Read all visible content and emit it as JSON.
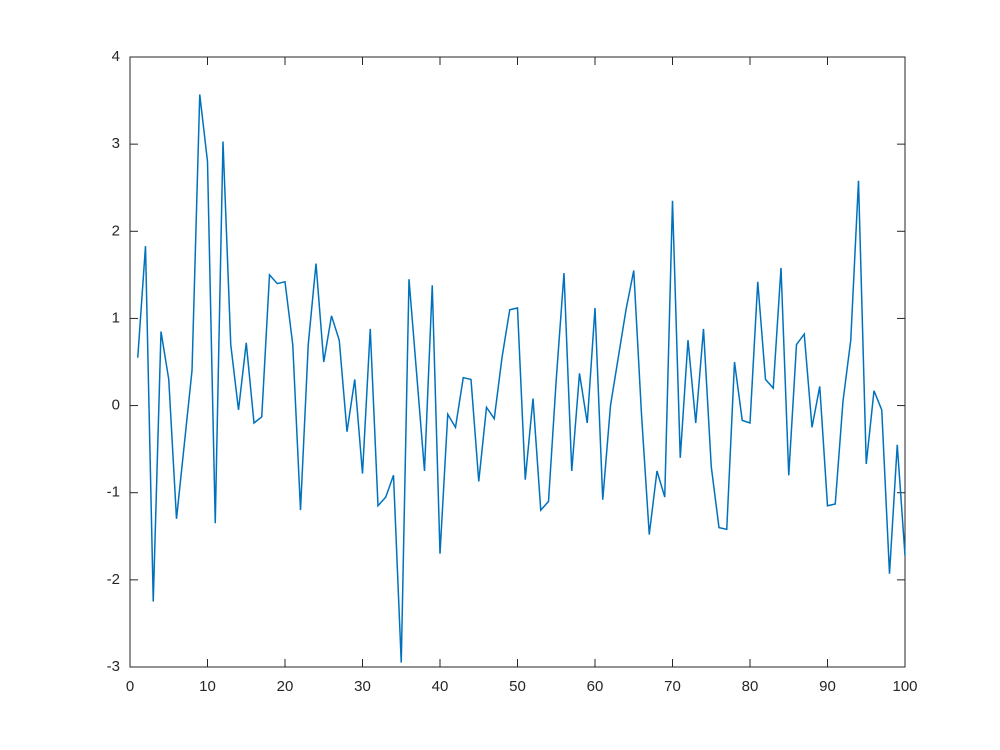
{
  "chart_data": {
    "type": "line",
    "x": [
      1,
      2,
      3,
      4,
      5,
      6,
      7,
      8,
      9,
      10,
      11,
      12,
      13,
      14,
      15,
      16,
      17,
      18,
      19,
      20,
      21,
      22,
      23,
      24,
      25,
      26,
      27,
      28,
      29,
      30,
      31,
      32,
      33,
      34,
      35,
      36,
      37,
      38,
      39,
      40,
      41,
      42,
      43,
      44,
      45,
      46,
      47,
      48,
      49,
      50,
      51,
      52,
      53,
      54,
      55,
      56,
      57,
      58,
      59,
      60,
      61,
      62,
      63,
      64,
      65,
      66,
      67,
      68,
      69,
      70,
      71,
      72,
      73,
      74,
      75,
      76,
      77,
      78,
      79,
      80,
      81,
      82,
      83,
      84,
      85,
      86,
      87,
      88,
      89,
      90,
      91,
      92,
      93,
      94,
      95,
      96,
      97,
      98,
      99,
      100
    ],
    "series": [
      {
        "color": "#0072bd",
        "values": [
          0.55,
          1.83,
          -2.25,
          0.85,
          0.3,
          -1.3,
          -0.45,
          0.4,
          3.57,
          2.8,
          -1.35,
          3.03,
          0.7,
          -0.05,
          0.72,
          -0.2,
          -0.13,
          1.5,
          1.4,
          1.42,
          0.7,
          -1.2,
          0.7,
          1.63,
          0.5,
          1.03,
          0.75,
          -0.3,
          0.3,
          -0.78,
          0.88,
          -1.15,
          -1.05,
          -0.8,
          -2.95,
          1.45,
          0.35,
          -0.75,
          1.38,
          -1.7,
          -0.1,
          -0.25,
          0.32,
          0.3,
          -0.87,
          -0.02,
          -0.15,
          0.55,
          1.1,
          1.12,
          -0.85,
          0.08,
          -1.2,
          -1.1,
          0.3,
          1.52,
          -0.75,
          0.37,
          -0.2,
          1.12,
          -1.08,
          0.0,
          0.55,
          1.1,
          1.55,
          -0.1,
          -1.48,
          -0.75,
          -1.05,
          2.35,
          -0.6,
          0.75,
          -0.2,
          0.88,
          -0.7,
          -1.4,
          -1.42,
          0.5,
          -0.17,
          -0.2,
          1.42,
          0.3,
          0.2,
          1.58,
          -0.8,
          0.7,
          0.82,
          -0.25,
          0.22,
          -1.15,
          -1.13,
          0.05,
          0.75,
          2.58,
          -0.67,
          0.17,
          -0.05,
          -1.93,
          -0.45,
          -1.72
        ]
      }
    ],
    "xlim": [
      0,
      100
    ],
    "xticks": [
      0,
      10,
      20,
      30,
      40,
      50,
      60,
      70,
      80,
      90,
      100
    ],
    "ylim": [
      -3,
      4
    ],
    "yticks": [
      -3,
      -2,
      -1,
      0,
      1,
      2,
      3,
      4
    ],
    "grid": false
  }
}
